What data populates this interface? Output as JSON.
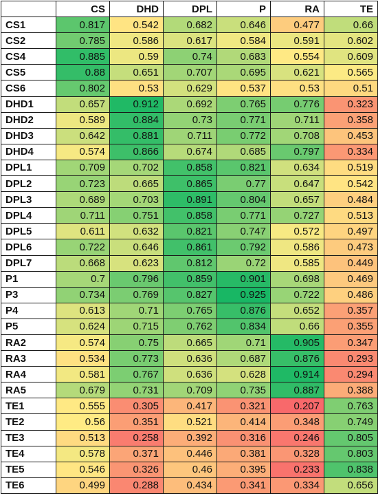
{
  "chart_data": {
    "type": "heatmap",
    "corner": "",
    "columns": [
      "CS",
      "DHD",
      "DPL",
      "P",
      "RA",
      "TE"
    ],
    "rows": [
      {
        "label": "CS1",
        "values": [
          "0.817",
          "0.542",
          "0.682",
          "0.646",
          "0.477",
          "0.66"
        ]
      },
      {
        "label": "CS2",
        "values": [
          "0.785",
          "0.586",
          "0.617",
          "0.584",
          "0.591",
          "0.602"
        ]
      },
      {
        "label": "CS4",
        "values": [
          "0.885",
          "0.59",
          "0.74",
          "0.683",
          "0.554",
          "0.609"
        ]
      },
      {
        "label": "CS5",
        "values": [
          "0.88",
          "0.651",
          "0.707",
          "0.695",
          "0.621",
          "0.565"
        ]
      },
      {
        "label": "CS6",
        "values": [
          "0.802",
          "0.53",
          "0.629",
          "0.537",
          "0.53",
          "0.51"
        ]
      },
      {
        "label": "DHD1",
        "values": [
          "0.657",
          "0.912",
          "0.692",
          "0.765",
          "0.776",
          "0.323"
        ]
      },
      {
        "label": "DHD2",
        "values": [
          "0.589",
          "0.884",
          "0.73",
          "0.771",
          "0.711",
          "0.358"
        ]
      },
      {
        "label": "DHD3",
        "values": [
          "0.642",
          "0.881",
          "0.711",
          "0.772",
          "0.708",
          "0.453"
        ]
      },
      {
        "label": "DHD4",
        "values": [
          "0.574",
          "0.866",
          "0.674",
          "0.685",
          "0.797",
          "0.334"
        ]
      },
      {
        "label": "DPL1",
        "values": [
          "0.709",
          "0.702",
          "0.858",
          "0.821",
          "0.634",
          "0.519"
        ]
      },
      {
        "label": "DPL2",
        "values": [
          "0.723",
          "0.665",
          "0.865",
          "0.77",
          "0.647",
          "0.542"
        ]
      },
      {
        "label": "DPL3",
        "values": [
          "0.689",
          "0.703",
          "0.891",
          "0.804",
          "0.657",
          "0.484"
        ]
      },
      {
        "label": "DPL4",
        "values": [
          "0.711",
          "0.751",
          "0.858",
          "0.771",
          "0.727",
          "0.513"
        ]
      },
      {
        "label": "DPL5",
        "values": [
          "0.611",
          "0.632",
          "0.821",
          "0.747",
          "0.572",
          "0.497"
        ]
      },
      {
        "label": "DPL6",
        "values": [
          "0.722",
          "0.646",
          "0.861",
          "0.792",
          "0.586",
          "0.473"
        ]
      },
      {
        "label": "DPL7",
        "values": [
          "0.668",
          "0.623",
          "0.812",
          "0.72",
          "0.585",
          "0.449"
        ]
      },
      {
        "label": "P1",
        "values": [
          "0.7",
          "0.796",
          "0.859",
          "0.901",
          "0.698",
          "0.469"
        ]
      },
      {
        "label": "P3",
        "values": [
          "0.734",
          "0.769",
          "0.827",
          "0.925",
          "0.722",
          "0.486"
        ]
      },
      {
        "label": "P4",
        "values": [
          "0.613",
          "0.71",
          "0.765",
          "0.876",
          "0.652",
          "0.357"
        ]
      },
      {
        "label": "P5",
        "values": [
          "0.624",
          "0.715",
          "0.762",
          "0.834",
          "0.66",
          "0.355"
        ]
      },
      {
        "label": "RA2",
        "values": [
          "0.574",
          "0.75",
          "0.665",
          "0.71",
          "0.905",
          "0.347"
        ]
      },
      {
        "label": "RA3",
        "values": [
          "0.534",
          "0.773",
          "0.636",
          "0.687",
          "0.876",
          "0.293"
        ]
      },
      {
        "label": "RA4",
        "values": [
          "0.581",
          "0.767",
          "0.636",
          "0.628",
          "0.914",
          "0.294"
        ]
      },
      {
        "label": "RA5",
        "values": [
          "0.679",
          "0.731",
          "0.709",
          "0.735",
          "0.887",
          "0.388"
        ]
      },
      {
        "label": "TE1",
        "values": [
          "0.555",
          "0.305",
          "0.417",
          "0.321",
          "0.207",
          "0.763"
        ]
      },
      {
        "label": "TE2",
        "values": [
          "0.56",
          "0.351",
          "0.521",
          "0.414",
          "0.348",
          "0.749"
        ]
      },
      {
        "label": "TE3",
        "values": [
          "0.513",
          "0.258",
          "0.392",
          "0.316",
          "0.246",
          "0.805"
        ]
      },
      {
        "label": "TE4",
        "values": [
          "0.578",
          "0.371",
          "0.446",
          "0.381",
          "0.328",
          "0.803"
        ]
      },
      {
        "label": "TE5",
        "values": [
          "0.546",
          "0.326",
          "0.46",
          "0.395",
          "0.233",
          "0.838"
        ]
      },
      {
        "label": "TE6",
        "values": [
          "0.499",
          "0.288",
          "0.434",
          "0.341",
          "0.334",
          "0.656"
        ]
      }
    ],
    "color_scale": {
      "min": 0.207,
      "mid": 0.56,
      "max": 0.925,
      "min_color": "#f8696b",
      "mid_color": "#ffeb84",
      "max_color": "#18b764"
    }
  }
}
